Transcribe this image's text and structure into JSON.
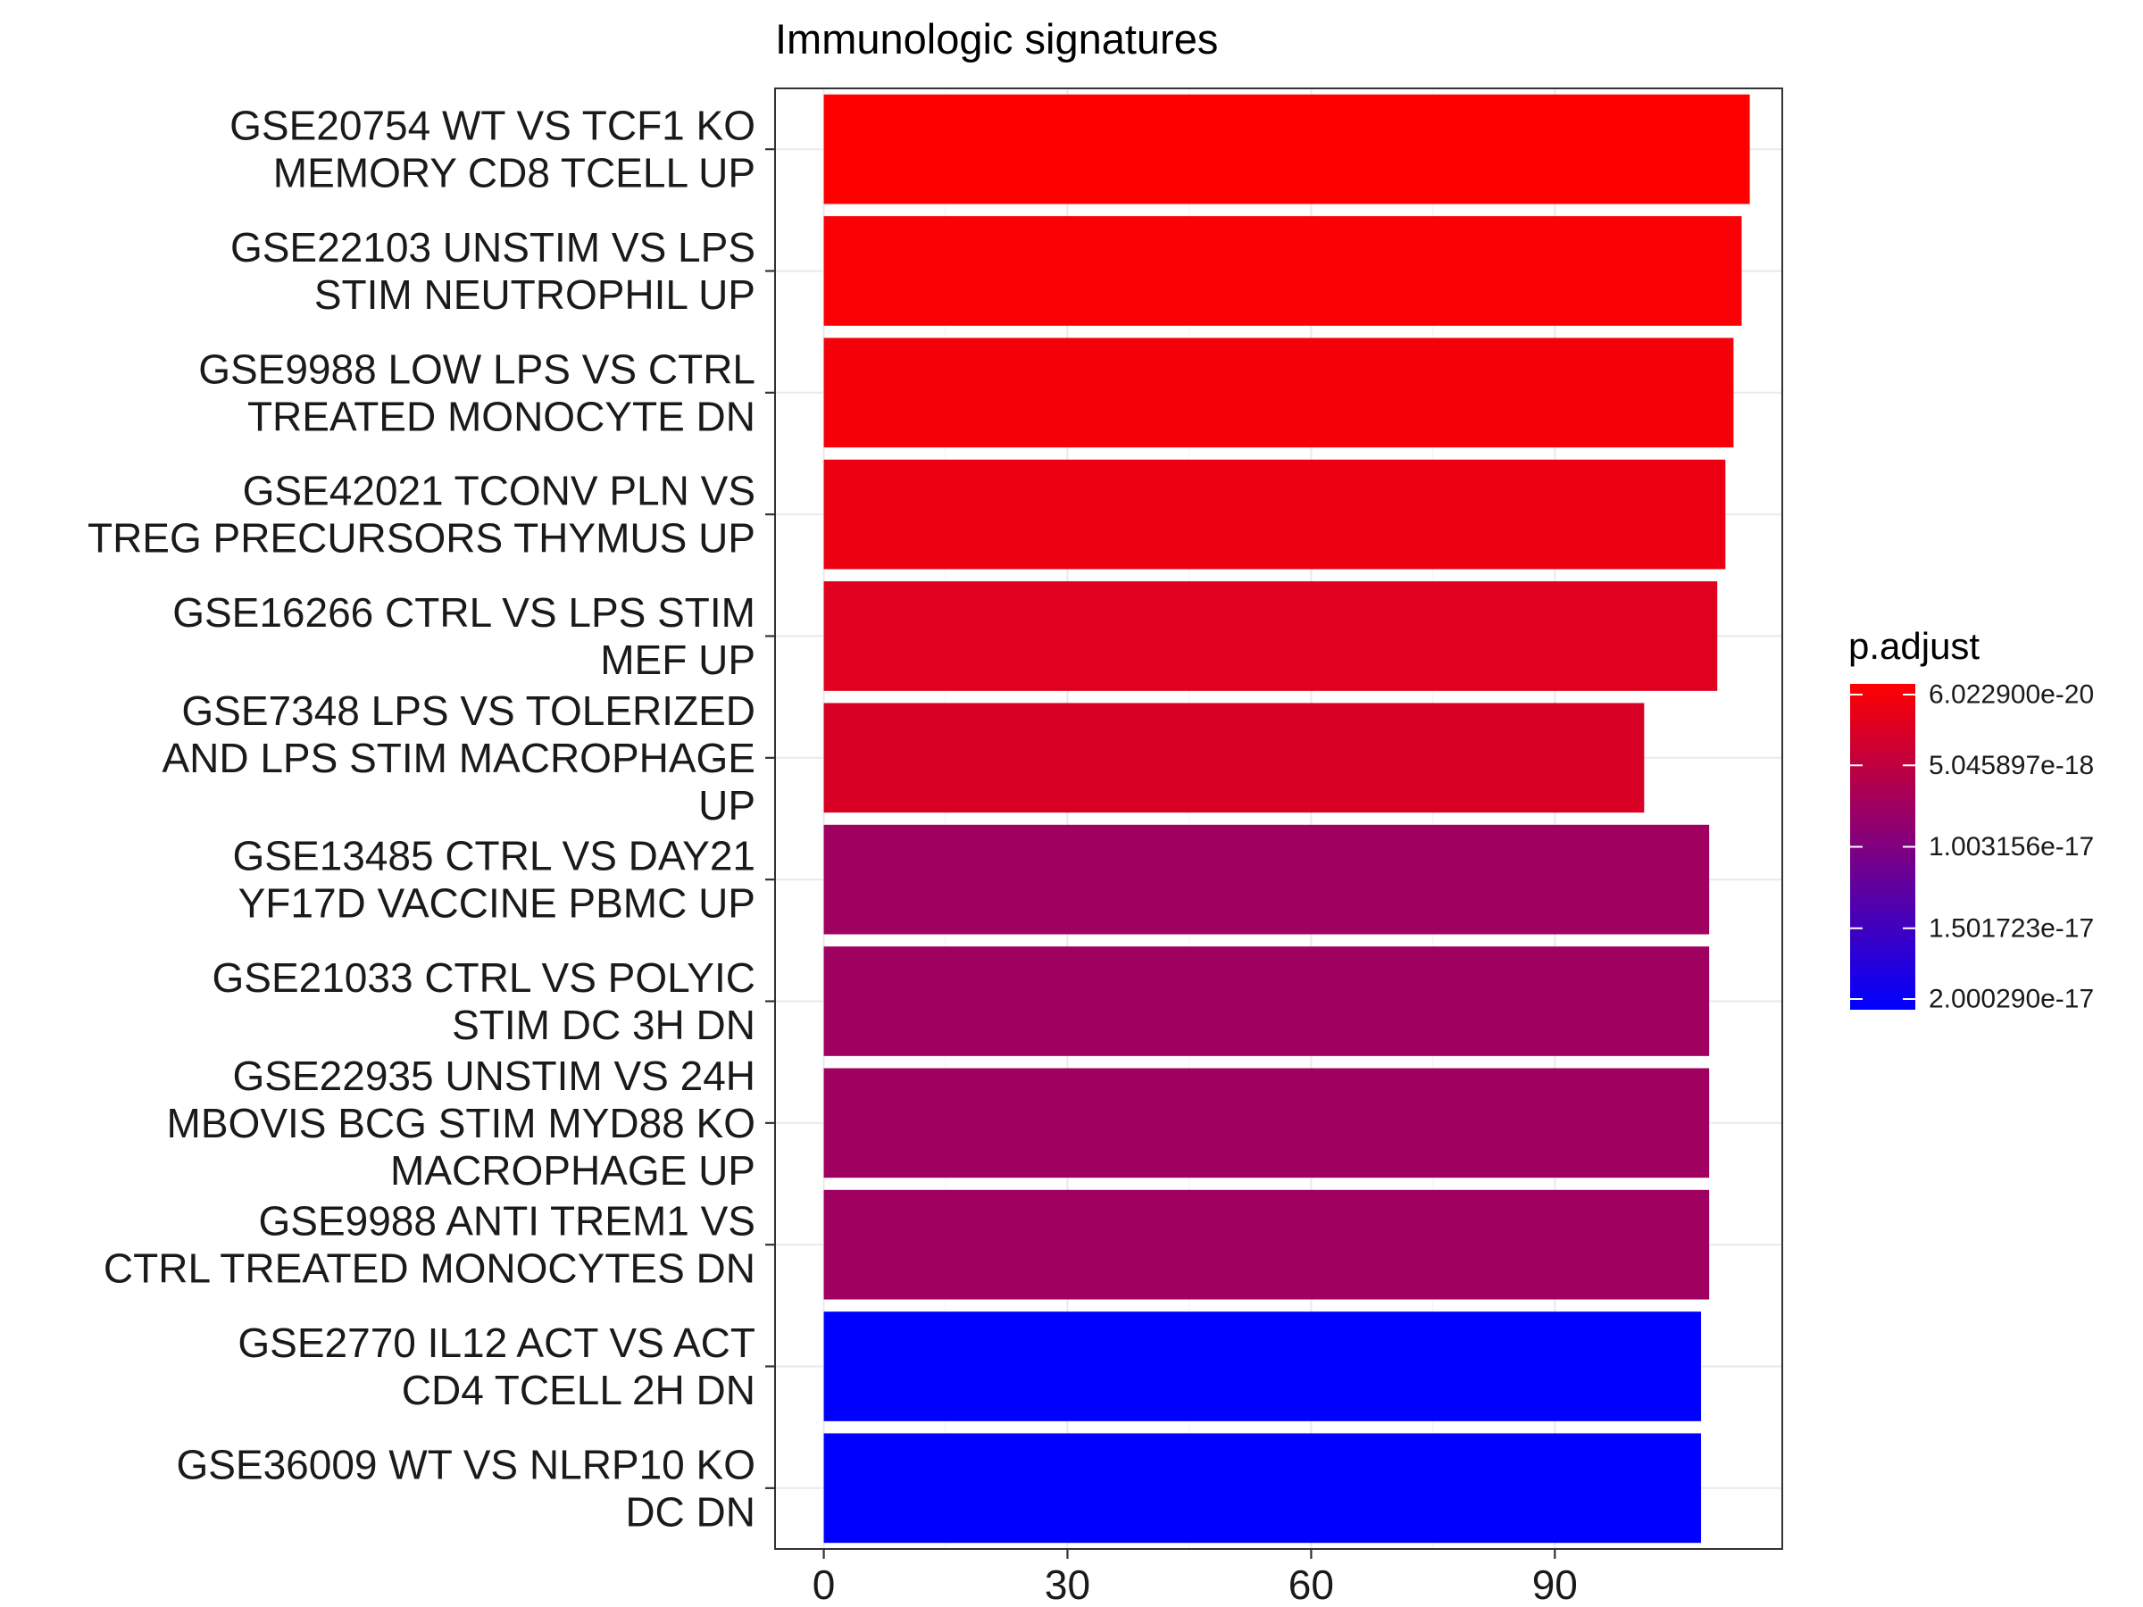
{
  "chart_data": {
    "type": "bar",
    "orientation": "horizontal",
    "title": "Immunologic signatures",
    "xlabel": "",
    "ylabel": "",
    "xlim": [
      -6,
      118
    ],
    "x_ticks": [
      0,
      30,
      60,
      90
    ],
    "grid": true,
    "legend": {
      "title": "p.adjust",
      "position": "right",
      "labels": [
        "6.022900e-20",
        "5.045897e-18",
        "1.003156e-17",
        "1.501723e-17",
        "2.000290e-17"
      ],
      "stop_values": [
        6.0229e-20,
        5.045897e-18,
        1.003156e-17,
        1.501723e-17,
        2.00029e-17
      ],
      "colors": [
        "#ff0000",
        "#0000ff"
      ]
    },
    "categories": [
      [
        "GSE20754 WT VS TCF1 KO",
        "MEMORY CD8 TCELL UP"
      ],
      [
        "GSE22103 UNSTIM VS LPS",
        "STIM NEUTROPHIL UP"
      ],
      [
        "GSE9988 LOW LPS VS CTRL",
        "TREATED MONOCYTE DN"
      ],
      [
        "GSE42021 TCONV PLN VS",
        "TREG PRECURSORS THYMUS UP"
      ],
      [
        "GSE16266 CTRL VS LPS STIM",
        "MEF UP"
      ],
      [
        "GSE7348 LPS VS TOLERIZED",
        "AND LPS STIM MACROPHAGE",
        "UP"
      ],
      [
        "GSE13485 CTRL VS DAY21",
        "YF17D VACCINE PBMC UP"
      ],
      [
        "GSE21033 CTRL VS POLYIC",
        "STIM DC 3H DN"
      ],
      [
        "GSE22935 UNSTIM VS 24H",
        "MBOVIS BCG STIM MYD88 KO",
        "MACROPHAGE UP"
      ],
      [
        "GSE9988 ANTI TREM1 VS",
        "CTRL TREATED MONOCYTES DN"
      ],
      [
        "GSE2770 IL12 ACT VS ACT",
        "CD4 TCELL 2H DN"
      ],
      [
        "GSE36009 WT VS NLRP10 KO",
        "DC DN"
      ]
    ],
    "values": [
      114,
      113,
      112,
      111,
      110,
      101,
      109,
      109,
      109,
      109,
      108,
      108
    ],
    "p_adjust": [
      6e-20,
      4e-19,
      8e-19,
      1.5e-18,
      2.5e-18,
      3e-18,
      7.5e-18,
      7.5e-18,
      7.5e-18,
      7.5e-18,
      2e-17,
      2e-17
    ]
  }
}
